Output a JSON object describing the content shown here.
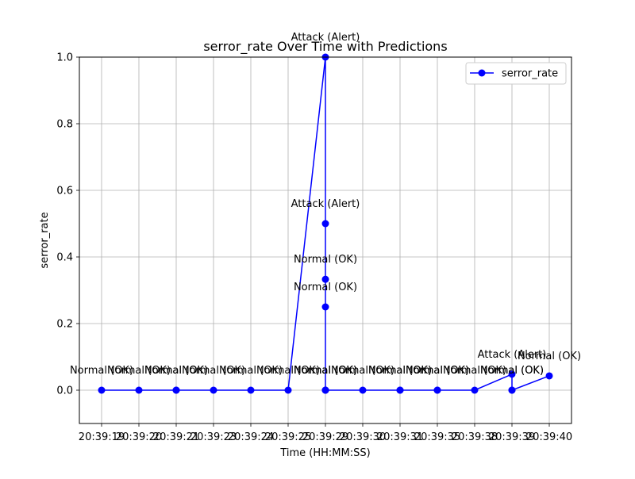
{
  "chart_data": {
    "type": "line",
    "title": "serror_rate Over Time with Predictions",
    "xlabel": "Time (HH:MM:SS)",
    "ylabel": "serror_rate",
    "ylim": [
      -0.1,
      1.0
    ],
    "yticks": [
      0.0,
      0.2,
      0.4,
      0.6,
      0.8,
      1.0
    ],
    "ytick_labels": [
      "0.0",
      "0.2",
      "0.4",
      "0.6",
      "0.8",
      "1.0"
    ],
    "xticks": [
      "20:39:19",
      "20:39:20",
      "20:39:21",
      "20:39:23",
      "20:39:24",
      "20:39:25",
      "20:39:29",
      "20:39:30",
      "20:39:31",
      "20:39:35",
      "20:39:38",
      "20:39:39",
      "20:39:40"
    ],
    "grid": true,
    "legend_position": "upper right",
    "series": [
      {
        "name": "serror_rate",
        "color": "#0000ff",
        "marker": "circle",
        "points": [
          {
            "x": "20:39:19",
            "y": 0.0,
            "label": "Normal (OK)"
          },
          {
            "x": "20:39:20",
            "y": 0.0,
            "label": "Normal (OK)"
          },
          {
            "x": "20:39:21",
            "y": 0.0,
            "label": "Normal (OK)"
          },
          {
            "x": "20:39:21",
            "y": 0.0,
            "label": "Normal (OK)"
          },
          {
            "x": "20:39:23",
            "y": 0.0,
            "label": "Normal (OK)"
          },
          {
            "x": "20:39:24",
            "y": 0.0,
            "label": "Normal (OK)"
          },
          {
            "x": "20:39:25",
            "y": 0.0,
            "label": "Normal (OK)"
          },
          {
            "x": "20:39:29",
            "y": 1.0,
            "label": "Attack (Alert)"
          },
          {
            "x": "20:39:29",
            "y": 0.0,
            "label": "Normal (OK)"
          },
          {
            "x": "20:39:29",
            "y": 0.5,
            "label": "Attack (Alert)"
          },
          {
            "x": "20:39:29",
            "y": 0.0,
            "label": "Normal (OK)"
          },
          {
            "x": "20:39:29",
            "y": 0.333,
            "label": "Normal (OK)"
          },
          {
            "x": "20:39:29",
            "y": 0.25,
            "label": "Normal (OK)"
          },
          {
            "x": "20:39:29",
            "y": 0.0,
            "label": "Normal (OK)"
          },
          {
            "x": "20:39:30",
            "y": 0.0,
            "label": "Normal (OK)"
          },
          {
            "x": "20:39:31",
            "y": 0.0,
            "label": "Normal (OK)"
          },
          {
            "x": "20:39:31",
            "y": 0.0,
            "label": "Normal (OK)"
          },
          {
            "x": "20:39:35",
            "y": 0.0,
            "label": "Normal (OK)"
          },
          {
            "x": "20:39:35",
            "y": 0.0,
            "label": "Normal (OK)"
          },
          {
            "x": "20:39:38",
            "y": 0.0,
            "label": "Normal (OK)"
          },
          {
            "x": "20:39:39",
            "y": 0.048,
            "label": "Attack (Alert)"
          },
          {
            "x": "20:39:39",
            "y": 0.0,
            "label": "Normal (OK)"
          },
          {
            "x": "20:39:39",
            "y": 0.0,
            "label": "Normal (OK)"
          },
          {
            "x": "20:39:40",
            "y": 0.043,
            "label": "Normal (OK)"
          }
        ]
      }
    ]
  }
}
